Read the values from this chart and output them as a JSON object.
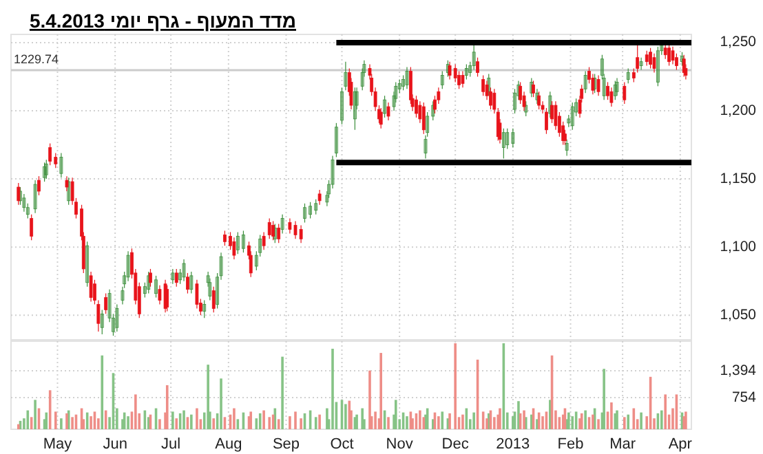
{
  "chart_data": [
    {
      "type": "candlestick",
      "title": "מדד המעוף - גרף יומי 5.4.2013",
      "xlim": [
        "2012-04-06",
        "2013-04-07"
      ],
      "xticks": [
        {
          "value": "2012-05-01",
          "label": null
        },
        {
          "value": "2012-06-01",
          "label": null
        },
        {
          "value": "2012-07-01",
          "label": null
        },
        {
          "value": "2012-08-01",
          "label": null
        },
        {
          "value": "2012-09-01",
          "label": null
        },
        {
          "value": "2012-10-01",
          "label": null
        },
        {
          "value": "2012-11-01",
          "label": null
        },
        {
          "value": "2012-12-01",
          "label": null
        },
        {
          "value": "2013-01-01",
          "label": null
        },
        {
          "value": "2013-02-01",
          "label": null
        },
        {
          "value": "2013-03-01",
          "label": null
        },
        {
          "value": "2013-04-01",
          "label": null
        }
      ],
      "ylim": [
        1032,
        1256
      ],
      "yticks": [
        {
          "value": 1050,
          "label": "1,050"
        },
        {
          "value": 1100,
          "label": "1,100"
        },
        {
          "value": 1150,
          "label": "1,150"
        },
        {
          "value": 1200,
          "label": "1,200"
        },
        {
          "value": 1250,
          "label": "1,250"
        }
      ],
      "tick_labels": "y",
      "grid": true,
      "ref_lines": [
        {
          "axis": "y",
          "value": 1229.74,
          "label": "1229.74",
          "color": "#cccccc"
        }
      ],
      "series": [
        {
          "color": "#3a8e3a",
          "x": [
            "2012-04-11",
            "2012-04-13",
            "2012-04-15",
            "2012-04-19",
            "2012-04-24",
            "2012-04-25",
            "2012-05-03",
            "2012-05-07",
            "2012-05-17",
            "2012-05-25",
            "2012-05-29",
            "2012-05-31",
            "2012-06-02",
            "2012-06-05",
            "2012-06-06",
            "2012-06-08",
            "2012-06-17",
            "2012-06-19",
            "2012-06-23",
            "2012-07-02",
            "2012-07-06",
            "2012-07-08",
            "2012-07-12",
            "2012-07-19",
            "2012-07-21",
            "2012-07-22",
            "2012-07-26",
            "2012-07-28",
            "2012-08-06",
            "2012-08-09",
            "2012-08-16",
            "2012-08-18",
            "2012-08-26",
            "2012-08-30",
            "2012-09-11",
            "2012-09-14",
            "2012-09-17",
            "2012-09-23",
            "2012-09-24",
            "2012-09-26",
            "2012-09-28",
            "2012-10-01",
            "2012-10-03",
            "2012-10-08",
            "2012-10-09",
            "2012-10-12",
            "2012-10-13",
            "2012-10-24",
            "2012-10-29",
            "2012-10-30",
            "2012-11-01",
            "2012-11-03",
            "2012-11-05",
            "2012-11-15",
            "2012-11-16",
            "2012-11-19",
            "2012-11-24",
            "2012-11-27",
            "2012-12-07",
            "2012-12-09",
            "2012-12-11",
            "2012-12-19",
            "2012-12-27",
            "2012-12-29",
            "2013-01-01",
            "2013-01-02",
            "2013-01-04",
            "2013-01-08",
            "2013-01-11",
            "2013-01-14",
            "2013-01-21",
            "2013-01-30",
            "2013-01-31",
            "2013-02-02",
            "2013-02-04",
            "2013-02-09",
            "2013-02-14",
            "2013-02-18",
            "2013-02-19",
            "2013-02-25",
            "2013-02-26",
            "2013-03-04",
            "2013-03-11",
            "2013-03-20",
            "2013-03-22",
            "2013-04-02"
          ],
          "ohlc": [
            [
              1134,
              1144,
              1131,
              1141
            ],
            [
              1129,
              1139,
              1126,
              1136
            ],
            [
              1124,
              1132,
              1121,
              1129
            ],
            [
              1128,
              1149,
              1125,
              1146
            ],
            [
              1151,
              1162,
              1148,
              1159
            ],
            [
              1153,
              1164,
              1150,
              1161
            ],
            [
              1154,
              1169,
              1151,
              1166
            ],
            [
              1134,
              1151,
              1131,
              1148
            ],
            [
              1074,
              1104,
              1071,
              1101
            ],
            [
              1041,
              1054,
              1036,
              1051
            ],
            [
              1048,
              1069,
              1045,
              1066
            ],
            [
              1038,
              1051,
              1035,
              1048
            ],
            [
              1041,
              1058,
              1038,
              1055
            ],
            [
              1061,
              1071,
              1058,
              1068
            ],
            [
              1073,
              1082,
              1070,
              1079
            ],
            [
              1078,
              1097,
              1075,
              1094
            ],
            [
              1066,
              1074,
              1063,
              1071
            ],
            [
              1069,
              1082,
              1066,
              1079
            ],
            [
              1066,
              1079,
              1063,
              1076
            ],
            [
              1076,
              1084,
              1073,
              1081
            ],
            [
              1076,
              1084,
              1073,
              1081
            ],
            [
              1078,
              1091,
              1075,
              1088
            ],
            [
              1069,
              1082,
              1066,
              1079
            ],
            [
              1053,
              1061,
              1048,
              1058
            ],
            [
              1074,
              1082,
              1071,
              1079
            ],
            [
              1064,
              1077,
              1061,
              1074
            ],
            [
              1058,
              1081,
              1055,
              1078
            ],
            [
              1079,
              1096,
              1076,
              1093
            ],
            [
              1098,
              1111,
              1095,
              1108
            ],
            [
              1099,
              1112,
              1096,
              1109
            ],
            [
              1086,
              1097,
              1083,
              1094
            ],
            [
              1096,
              1109,
              1093,
              1106
            ],
            [
              1106,
              1117,
              1103,
              1114
            ],
            [
              1113,
              1124,
              1110,
              1121
            ],
            [
              1121,
              1132,
              1118,
              1129
            ],
            [
              1124,
              1133,
              1121,
              1130
            ],
            [
              1127,
              1135,
              1124,
              1132
            ],
            [
              1133,
              1141,
              1130,
              1138
            ],
            [
              1139,
              1149,
              1136,
              1146
            ],
            [
              1146,
              1167,
              1143,
              1164
            ],
            [
              1169,
              1191,
              1166,
              1188
            ],
            [
              1193,
              1217,
              1190,
              1214
            ],
            [
              1218,
              1236,
              1215,
              1228
            ],
            [
              1194,
              1217,
              1186,
              1214
            ],
            [
              1204,
              1217,
              1201,
              1214
            ],
            [
              1218,
              1231,
              1215,
              1228
            ],
            [
              1228,
              1237,
              1225,
              1234
            ],
            [
              1198,
              1211,
              1195,
              1208
            ],
            [
              1203,
              1214,
              1200,
              1211
            ],
            [
              1209,
              1221,
              1206,
              1218
            ],
            [
              1216,
              1223,
              1213,
              1220
            ],
            [
              1218,
              1226,
              1215,
              1223
            ],
            [
              1219,
              1232,
              1216,
              1229
            ],
            [
              1169,
              1182,
              1165,
              1179
            ],
            [
              1184,
              1199,
              1181,
              1196
            ],
            [
              1196,
              1207,
              1193,
              1204
            ],
            [
              1219,
              1229,
              1216,
              1226
            ],
            [
              1228,
              1237,
              1225,
              1234
            ],
            [
              1226,
              1234,
              1223,
              1231
            ],
            [
              1228,
              1236,
              1225,
              1233
            ],
            [
              1233,
              1250,
              1230,
              1243
            ],
            [
              1214,
              1227,
              1211,
              1224
            ],
            [
              1173,
              1187,
              1165,
              1184
            ],
            [
              1175,
              1187,
              1172,
              1184
            ],
            [
              1176,
              1187,
              1173,
              1184
            ],
            [
              1201,
              1216,
              1198,
              1213
            ],
            [
              1211,
              1222,
              1208,
              1219
            ],
            [
              1199,
              1207,
              1196,
              1204
            ],
            [
              1213,
              1224,
              1210,
              1221
            ],
            [
              1208,
              1216,
              1205,
              1213
            ],
            [
              1198,
              1214,
              1195,
              1211
            ],
            [
              1171,
              1179,
              1167,
              1176
            ],
            [
              1191,
              1197,
              1188,
              1194
            ],
            [
              1189,
              1206,
              1186,
              1203
            ],
            [
              1199,
              1209,
              1196,
              1206
            ],
            [
              1216,
              1229,
              1213,
              1226
            ],
            [
              1216,
              1227,
              1213,
              1224
            ],
            [
              1226,
              1241,
              1223,
              1238
            ],
            [
              1211,
              1227,
              1208,
              1224
            ],
            [
              1211,
              1222,
              1208,
              1219
            ],
            [
              1214,
              1224,
              1211,
              1221
            ],
            [
              1223,
              1231,
              1220,
              1228
            ],
            [
              1233,
              1239,
              1230,
              1236
            ],
            [
              1221,
              1247,
              1218,
              1244
            ],
            [
              1244,
              1251,
              1241,
              1248
            ],
            [
              1236,
              1243,
              1233,
              1240
            ]
          ]
        },
        {
          "color": "#e8141b",
          "x": [
            "2012-04-10",
            "2012-04-17",
            "2012-04-21",
            "2012-04-27",
            "2012-04-30",
            "2012-05-06",
            "2012-05-09",
            "2012-05-11",
            "2012-05-14",
            "2012-05-15",
            "2012-05-19",
            "2012-05-21",
            "2012-05-23",
            "2012-05-27",
            "2012-06-10",
            "2012-06-12",
            "2012-06-14",
            "2012-06-20",
            "2012-06-25",
            "2012-06-28",
            "2012-06-29",
            "2012-07-04",
            "2012-07-10",
            "2012-07-15",
            "2012-07-17",
            "2012-07-24",
            "2012-07-30",
            "2012-08-02",
            "2012-08-04",
            "2012-08-12",
            "2012-08-13",
            "2012-08-20",
            "2012-08-23",
            "2012-08-25",
            "2012-08-28",
            "2012-09-03",
            "2012-09-06",
            "2012-09-09",
            "2012-09-19",
            "2012-10-05",
            "2012-10-06",
            "2012-10-16",
            "2012-10-17",
            "2012-10-19",
            "2012-10-21",
            "2012-10-22",
            "2012-10-26",
            "2012-11-07",
            "2012-11-08",
            "2012-11-10",
            "2012-11-12",
            "2012-11-14",
            "2012-11-20",
            "2012-11-22",
            "2012-11-28",
            "2012-12-01",
            "2012-12-03",
            "2012-12-05",
            "2012-12-13",
            "2012-12-16",
            "2012-12-18",
            "2012-12-20",
            "2012-12-22",
            "2012-12-24",
            "2012-12-25",
            "2013-01-05",
            "2013-01-07",
            "2013-01-12",
            "2013-01-15",
            "2013-01-17",
            "2013-01-19",
            "2013-01-22",
            "2013-01-24",
            "2013-01-26",
            "2013-01-28",
            "2013-01-29",
            "2013-02-06",
            "2013-02-07",
            "2013-02-11",
            "2013-02-13",
            "2013-02-16",
            "2013-02-21",
            "2013-02-23",
            "2013-03-02",
            "2013-03-07",
            "2013-03-09",
            "2013-03-14",
            "2013-03-16",
            "2013-03-18",
            "2013-03-24",
            "2013-03-26",
            "2013-03-28",
            "2013-03-30",
            "2013-04-03",
            "2013-04-04"
          ],
          "ohlc": [
            [
              1144,
              1147,
              1131,
              1134
            ],
            [
              1121,
              1124,
              1105,
              1108
            ],
            [
              1149,
              1152,
              1138,
              1141
            ],
            [
              1173,
              1176,
              1160,
              1163
            ],
            [
              1166,
              1169,
              1158,
              1161
            ],
            [
              1149,
              1152,
              1141,
              1144
            ],
            [
              1148,
              1151,
              1131,
              1134
            ],
            [
              1133,
              1136,
              1121,
              1124
            ],
            [
              1128,
              1131,
              1105,
              1108
            ],
            [
              1108,
              1111,
              1081,
              1084
            ],
            [
              1079,
              1082,
              1060,
              1063
            ],
            [
              1073,
              1076,
              1058,
              1061
            ],
            [
              1058,
              1061,
              1038,
              1044
            ],
            [
              1063,
              1066,
              1051,
              1054
            ],
            [
              1096,
              1099,
              1077,
              1080
            ],
            [
              1081,
              1084,
              1058,
              1061
            ],
            [
              1071,
              1074,
              1048,
              1051
            ],
            [
              1081,
              1084,
              1071,
              1074
            ],
            [
              1069,
              1072,
              1058,
              1061
            ],
            [
              1073,
              1076,
              1052,
              1055
            ],
            [
              1069,
              1072,
              1053,
              1056
            ],
            [
              1081,
              1084,
              1071,
              1074
            ],
            [
              1078,
              1081,
              1066,
              1069
            ],
            [
              1073,
              1076,
              1055,
              1058
            ],
            [
              1059,
              1062,
              1050,
              1053
            ],
            [
              1068,
              1071,
              1052,
              1055
            ],
            [
              1109,
              1112,
              1101,
              1104
            ],
            [
              1108,
              1111,
              1098,
              1101
            ],
            [
              1104,
              1107,
              1091,
              1094
            ],
            [
              1101,
              1104,
              1091,
              1094
            ],
            [
              1094,
              1097,
              1078,
              1081
            ],
            [
              1108,
              1111,
              1098,
              1101
            ],
            [
              1118,
              1121,
              1106,
              1109
            ],
            [
              1116,
              1119,
              1105,
              1108
            ],
            [
              1114,
              1117,
              1103,
              1106
            ],
            [
              1118,
              1121,
              1110,
              1113
            ],
            [
              1116,
              1119,
              1106,
              1109
            ],
            [
              1113,
              1116,
              1103,
              1106
            ],
            [
              1139,
              1142,
              1131,
              1134
            ],
            [
              1228,
              1231,
              1211,
              1214
            ],
            [
              1221,
              1224,
              1201,
              1204
            ],
            [
              1231,
              1234,
              1223,
              1226
            ],
            [
              1224,
              1227,
              1211,
              1214
            ],
            [
              1214,
              1217,
              1200,
              1203
            ],
            [
              1201,
              1204,
              1191,
              1194
            ],
            [
              1199,
              1202,
              1187,
              1190
            ],
            [
              1203,
              1206,
              1193,
              1196
            ],
            [
              1229,
              1232,
              1205,
              1208
            ],
            [
              1209,
              1212,
              1200,
              1203
            ],
            [
              1208,
              1211,
              1195,
              1198
            ],
            [
              1204,
              1207,
              1191,
              1194
            ],
            [
              1203,
              1206,
              1183,
              1186
            ],
            [
              1208,
              1211,
              1198,
              1201
            ],
            [
              1214,
              1217,
              1205,
              1208
            ],
            [
              1233,
              1236,
              1223,
              1226
            ],
            [
              1231,
              1234,
              1221,
              1224
            ],
            [
              1226,
              1229,
              1216,
              1219
            ],
            [
              1226,
              1229,
              1217,
              1220
            ],
            [
              1236,
              1239,
              1225,
              1228
            ],
            [
              1223,
              1226,
              1211,
              1214
            ],
            [
              1219,
              1222,
              1208,
              1211
            ],
            [
              1214,
              1217,
              1201,
              1204
            ],
            [
              1213,
              1216,
              1198,
              1201
            ],
            [
              1199,
              1202,
              1178,
              1181
            ],
            [
              1191,
              1194,
              1176,
              1179
            ],
            [
              1218,
              1221,
              1205,
              1208
            ],
            [
              1211,
              1214,
              1200,
              1203
            ],
            [
              1219,
              1222,
              1210,
              1213
            ],
            [
              1211,
              1214,
              1201,
              1204
            ],
            [
              1204,
              1207,
              1198,
              1201
            ],
            [
              1199,
              1202,
              1183,
              1186
            ],
            [
              1204,
              1207,
              1191,
              1194
            ],
            [
              1204,
              1207,
              1186,
              1189
            ],
            [
              1196,
              1199,
              1181,
              1184
            ],
            [
              1189,
              1192,
              1175,
              1178
            ],
            [
              1183,
              1186,
              1175,
              1178
            ],
            [
              1208,
              1211,
              1195,
              1198
            ],
            [
              1216,
              1219,
              1206,
              1209
            ],
            [
              1229,
              1232,
              1220,
              1223
            ],
            [
              1224,
              1227,
              1212,
              1215
            ],
            [
              1223,
              1226,
              1211,
              1214
            ],
            [
              1218,
              1221,
              1208,
              1211
            ],
            [
              1214,
              1217,
              1203,
              1206
            ],
            [
              1218,
              1221,
              1205,
              1208
            ],
            [
              1228,
              1231,
              1221,
              1224
            ],
            [
              1239,
              1250,
              1228,
              1231
            ],
            [
              1241,
              1244,
              1233,
              1236
            ],
            [
              1243,
              1246,
              1231,
              1234
            ],
            [
              1239,
              1242,
              1228,
              1231
            ],
            [
              1246,
              1249,
              1238,
              1241
            ],
            [
              1246,
              1249,
              1233,
              1236
            ],
            [
              1244,
              1247,
              1234,
              1237
            ],
            [
              1239,
              1242,
              1230,
              1233
            ],
            [
              1238,
              1241,
              1225,
              1228
            ],
            [
              1231,
              1234,
              1223,
              1226
            ]
          ]
        },
        {
          "type": "line",
          "color": "#000000",
          "x": [
            "2012-09-28",
            "2013-04-07"
          ],
          "values": [
            1250,
            1250
          ]
        },
        {
          "type": "line",
          "color": "#000000",
          "x": [
            "2012-09-28",
            "2013-04-07"
          ],
          "values": [
            1162,
            1162
          ]
        }
      ]
    },
    {
      "type": "bar",
      "xlim": [
        "2012-04-06",
        "2013-04-07"
      ],
      "xticks": [
        {
          "value": "2012-05-01",
          "label": "May"
        },
        {
          "value": "2012-06-01",
          "label": "Jun"
        },
        {
          "value": "2012-07-01",
          "label": "Jul"
        },
        {
          "value": "2012-08-01",
          "label": "Aug"
        },
        {
          "value": "2012-09-01",
          "label": "Sep"
        },
        {
          "value": "2012-10-01",
          "label": "Oct"
        },
        {
          "value": "2012-11-01",
          "label": "Nov"
        },
        {
          "value": "2012-12-01",
          "label": "Dec"
        },
        {
          "value": "2013-01-01",
          "label": "2013"
        },
        {
          "value": "2013-02-01",
          "label": "Feb"
        },
        {
          "value": "2013-03-01",
          "label": "Mar"
        },
        {
          "value": "2013-04-01",
          "label": "Apr"
        }
      ],
      "ylim": [
        0,
        2100
      ],
      "yticks": [
        754,
        {
          "value": 1394,
          "label": "1,394"
        }
      ],
      "grid": true,
      "series": [
        {
          "color": "#86c386",
          "x": [
            "2012-04-11",
            "2012-04-13",
            "2012-04-15",
            "2012-04-19",
            "2012-04-24",
            "2012-04-25",
            "2012-05-03",
            "2012-05-07",
            "2012-05-17",
            "2012-05-25",
            "2012-05-29",
            "2012-05-31",
            "2012-06-02",
            "2012-06-05",
            "2012-06-06",
            "2012-06-08",
            "2012-06-17",
            "2012-06-19",
            "2012-06-23",
            "2012-07-02",
            "2012-07-06",
            "2012-07-08",
            "2012-07-12",
            "2012-07-19",
            "2012-07-21",
            "2012-07-22",
            "2012-07-26",
            "2012-07-28",
            "2012-08-06",
            "2012-08-09",
            "2012-08-16",
            "2012-08-18",
            "2012-08-26",
            "2012-08-30",
            "2012-09-11",
            "2012-09-14",
            "2012-09-17",
            "2012-09-23",
            "2012-09-24",
            "2012-09-26",
            "2012-09-28",
            "2012-10-01",
            "2012-10-03",
            "2012-10-08",
            "2012-10-09",
            "2012-10-12",
            "2012-10-13",
            "2012-10-24",
            "2012-10-29",
            "2012-10-30",
            "2012-11-01",
            "2012-11-03",
            "2012-11-05",
            "2012-11-15",
            "2012-11-16",
            "2012-11-19",
            "2012-11-24",
            "2012-11-27",
            "2012-12-07",
            "2012-12-09",
            "2012-12-11",
            "2012-12-19",
            "2012-12-27",
            "2012-12-29",
            "2013-01-01",
            "2013-01-02",
            "2013-01-04",
            "2013-01-08",
            "2013-01-11",
            "2013-01-14",
            "2013-01-21",
            "2013-01-30",
            "2013-01-31",
            "2013-02-02",
            "2013-02-04",
            "2013-02-09",
            "2013-02-14",
            "2013-02-18",
            "2013-02-19",
            "2013-02-25",
            "2013-02-26",
            "2013-03-04",
            "2013-03-11",
            "2013-03-20",
            "2013-03-22",
            "2013-04-02"
          ],
          "values": [
            200,
            260,
            450,
            700,
            240,
            400,
            260,
            450,
            400,
            1760,
            290,
            1340,
            500,
            240,
            400,
            310,
            450,
            290,
            500,
            420,
            380,
            450,
            350,
            400,
            1540,
            420,
            380,
            1210,
            240,
            400,
            260,
            380,
            500,
            1730,
            380,
            450,
            290,
            500,
            240,
            1920,
            650,
            700,
            600,
            290,
            350,
            500,
            240,
            450,
            350,
            700,
            240,
            400,
            310,
            350,
            500,
            240,
            420,
            260,
            500,
            240,
            400,
            380,
            2050,
            400,
            310,
            420,
            670,
            290,
            350,
            240,
            700,
            240,
            400,
            310,
            420,
            450,
            500,
            400,
            1440,
            380,
            450,
            350,
            400,
            380,
            450,
            400
          ]
        },
        {
          "color": "#ee8d87",
          "x": [
            "2012-04-10",
            "2012-04-17",
            "2012-04-21",
            "2012-04-27",
            "2012-04-30",
            "2012-05-06",
            "2012-05-09",
            "2012-05-11",
            "2012-05-14",
            "2012-05-15",
            "2012-05-19",
            "2012-05-21",
            "2012-05-23",
            "2012-05-27",
            "2012-06-10",
            "2012-06-12",
            "2012-06-14",
            "2012-06-20",
            "2012-06-25",
            "2012-06-28",
            "2012-06-29",
            "2012-07-04",
            "2012-07-10",
            "2012-07-15",
            "2012-07-17",
            "2012-07-24",
            "2012-07-30",
            "2012-08-02",
            "2012-08-04",
            "2012-08-12",
            "2012-08-13",
            "2012-08-20",
            "2012-08-23",
            "2012-08-25",
            "2012-08-28",
            "2012-09-03",
            "2012-09-06",
            "2012-09-09",
            "2012-09-19",
            "2012-10-05",
            "2012-10-06",
            "2012-10-16",
            "2012-10-17",
            "2012-10-19",
            "2012-10-21",
            "2012-10-22",
            "2012-10-26",
            "2012-11-07",
            "2012-11-08",
            "2012-11-10",
            "2012-11-12",
            "2012-11-14",
            "2012-11-20",
            "2012-11-22",
            "2012-11-28",
            "2012-12-01",
            "2012-12-03",
            "2012-12-05",
            "2012-12-13",
            "2012-12-16",
            "2012-12-18",
            "2012-12-20",
            "2012-12-22",
            "2012-12-24",
            "2012-12-25",
            "2013-01-05",
            "2013-01-07",
            "2013-01-12",
            "2013-01-15",
            "2013-01-17",
            "2013-01-19",
            "2013-01-22",
            "2013-01-24",
            "2013-01-26",
            "2013-01-28",
            "2013-01-29",
            "2013-02-06",
            "2013-02-07",
            "2013-02-11",
            "2013-02-13",
            "2013-02-16",
            "2013-02-21",
            "2013-02-23",
            "2013-03-02",
            "2013-03-07",
            "2013-03-09",
            "2013-03-14",
            "2013-03-16",
            "2013-03-18",
            "2013-03-24",
            "2013-03-26",
            "2013-03-28",
            "2013-03-30",
            "2013-04-03",
            "2013-04-04"
          ],
          "values": [
            120,
            290,
            500,
            930,
            420,
            380,
            290,
            350,
            500,
            240,
            310,
            420,
            260,
            450,
            420,
            830,
            380,
            350,
            240,
            400,
            1050,
            260,
            290,
            500,
            240,
            260,
            290,
            350,
            500,
            310,
            420,
            450,
            290,
            350,
            240,
            310,
            420,
            260,
            350,
            680,
            450,
            1400,
            310,
            420,
            260,
            1820,
            290,
            420,
            260,
            380,
            450,
            290,
            400,
            310,
            380,
            2050,
            290,
            350,
            1660,
            420,
            260,
            450,
            290,
            350,
            500,
            380,
            450,
            500,
            400,
            310,
            420,
            1760,
            450,
            290,
            350,
            500,
            260,
            380,
            290,
            350,
            240,
            420,
            640,
            290,
            500,
            240,
            310,
            1250,
            260,
            830,
            350,
            500,
            830,
            310,
            420
          ]
        }
      ]
    }
  ]
}
